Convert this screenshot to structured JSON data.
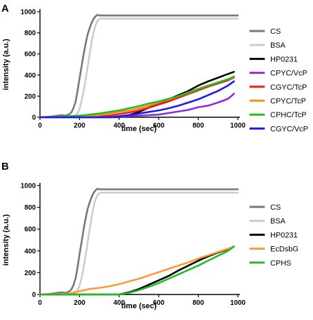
{
  "chart_data": [
    {
      "type": "line",
      "panel_label": "A",
      "xlabel": "time (sec)",
      "ylabel": "intensity (a.u.)",
      "xlim": [
        0,
        1000
      ],
      "ylim": [
        0,
        1000
      ],
      "xticks": [
        0,
        200,
        400,
        600,
        800,
        1000
      ],
      "yticks": [
        0,
        200,
        400,
        600,
        800,
        1000
      ],
      "legend_position": "right",
      "series": [
        {
          "name": "CS",
          "color": "#777777",
          "x": [
            0,
            50,
            90,
            110,
            130,
            150,
            160,
            170,
            180,
            190,
            200,
            210,
            220,
            230,
            240,
            250,
            260,
            270,
            280,
            290,
            300,
            320,
            500,
            700,
            1000
          ],
          "y": [
            0,
            5,
            15,
            20,
            15,
            30,
            50,
            90,
            150,
            250,
            370,
            480,
            590,
            690,
            780,
            840,
            890,
            930,
            955,
            970,
            965,
            965,
            965,
            965,
            965
          ]
        },
        {
          "name": "BSA",
          "color": "#cccccc",
          "x": [
            0,
            150,
            170,
            180,
            190,
            200,
            210,
            220,
            230,
            240,
            250,
            260,
            270,
            280,
            290,
            300,
            310,
            320,
            500,
            700,
            1000
          ],
          "y": [
            0,
            2,
            10,
            20,
            40,
            80,
            150,
            240,
            350,
            470,
            590,
            700,
            800,
            870,
            910,
            930,
            935,
            935,
            935,
            935,
            935
          ]
        },
        {
          "name": "HP0231",
          "color": "#000000",
          "x": [
            0,
            400,
            450,
            500,
            550,
            600,
            650,
            700,
            750,
            800,
            850,
            900,
            950,
            980
          ],
          "y": [
            0,
            0,
            20,
            50,
            90,
            130,
            170,
            210,
            250,
            300,
            340,
            375,
            410,
            430
          ]
        },
        {
          "name": "CPYC/VcP",
          "color": "#8a2be2",
          "x": [
            0,
            350,
            400,
            500,
            550,
            600,
            650,
            700,
            750,
            800,
            850,
            900,
            930,
            950,
            970,
            980
          ],
          "y": [
            0,
            0,
            5,
            15,
            20,
            25,
            40,
            55,
            70,
            95,
            110,
            140,
            160,
            175,
            205,
            225
          ]
        },
        {
          "name": "CGYC/TcP",
          "color": "#ee1c1c",
          "x": [
            0,
            300,
            350,
            400,
            450,
            500,
            550,
            600,
            650,
            700,
            750,
            800,
            850,
            900,
            950,
            980
          ],
          "y": [
            0,
            5,
            15,
            30,
            45,
            65,
            90,
            120,
            150,
            185,
            220,
            255,
            290,
            320,
            350,
            375
          ]
        },
        {
          "name": "CPYC/TcP",
          "color": "#ff8c1a",
          "x": [
            0,
            250,
            300,
            350,
            400,
            450,
            500,
            550,
            600,
            650,
            700,
            750,
            800,
            850,
            900,
            950,
            980
          ],
          "y": [
            0,
            8,
            20,
            35,
            50,
            65,
            85,
            110,
            140,
            170,
            200,
            235,
            270,
            300,
            330,
            360,
            380
          ]
        },
        {
          "name": "CPHC/TcP",
          "color": "#22bb22",
          "x": [
            0,
            100,
            200,
            250,
            300,
            350,
            400,
            450,
            500,
            550,
            600,
            650,
            700,
            750,
            800,
            850,
            900,
            950,
            980
          ],
          "y": [
            0,
            5,
            15,
            25,
            35,
            50,
            65,
            85,
            105,
            130,
            150,
            175,
            200,
            230,
            265,
            300,
            330,
            360,
            385
          ]
        },
        {
          "name": "CGYC/VcP",
          "color": "#1a1aee",
          "x": [
            0,
            350,
            400,
            450,
            500,
            550,
            600,
            650,
            700,
            750,
            800,
            850,
            900,
            950,
            980
          ],
          "y": [
            0,
            0,
            10,
            20,
            35,
            50,
            65,
            85,
            110,
            140,
            170,
            210,
            250,
            300,
            340
          ]
        }
      ]
    },
    {
      "type": "line",
      "panel_label": "B",
      "xlabel": "time (sec)",
      "ylabel": "intensity (a.u.)",
      "xlim": [
        0,
        1000
      ],
      "ylim": [
        0,
        1000
      ],
      "xticks": [
        0,
        200,
        400,
        600,
        800,
        1000
      ],
      "yticks": [
        0,
        200,
        400,
        600,
        800,
        1000
      ],
      "legend_position": "right",
      "series": [
        {
          "name": "CS",
          "color": "#777777",
          "x": [
            0,
            50,
            90,
            110,
            130,
            150,
            160,
            170,
            180,
            190,
            200,
            210,
            220,
            230,
            240,
            250,
            260,
            270,
            280,
            290,
            300,
            320,
            500,
            700,
            1000
          ],
          "y": [
            0,
            5,
            15,
            20,
            15,
            30,
            50,
            90,
            150,
            250,
            370,
            480,
            590,
            690,
            780,
            840,
            890,
            930,
            955,
            970,
            965,
            965,
            965,
            965,
            965
          ]
        },
        {
          "name": "BSA",
          "color": "#cccccc",
          "x": [
            0,
            150,
            170,
            180,
            190,
            200,
            210,
            220,
            230,
            240,
            250,
            260,
            270,
            280,
            290,
            300,
            310,
            320,
            500,
            700,
            1000
          ],
          "y": [
            0,
            2,
            10,
            20,
            40,
            80,
            150,
            240,
            350,
            470,
            590,
            700,
            800,
            870,
            910,
            930,
            935,
            935,
            935,
            935,
            935
          ]
        },
        {
          "name": "HP0231",
          "color": "#000000",
          "x": [
            0,
            400,
            450,
            500,
            550,
            600,
            650,
            700,
            750,
            800,
            850,
            900,
            950,
            980
          ],
          "y": [
            0,
            0,
            20,
            50,
            90,
            130,
            170,
            220,
            265,
            310,
            350,
            385,
            415,
            440
          ]
        },
        {
          "name": "EcDsbG",
          "color": "#ff9933",
          "x": [
            0,
            100,
            150,
            200,
            250,
            300,
            350,
            400,
            450,
            500,
            550,
            600,
            650,
            700,
            750,
            800,
            850,
            900,
            950,
            980
          ],
          "y": [
            0,
            3,
            8,
            30,
            50,
            60,
            75,
            95,
            120,
            145,
            175,
            205,
            235,
            265,
            295,
            330,
            360,
            390,
            420,
            440
          ]
        },
        {
          "name": "CPHS",
          "color": "#22bb22",
          "x": [
            0,
            400,
            450,
            500,
            550,
            600,
            650,
            700,
            750,
            800,
            850,
            900,
            950,
            980
          ],
          "y": [
            0,
            0,
            15,
            40,
            70,
            105,
            145,
            185,
            225,
            265,
            310,
            355,
            400,
            440
          ]
        }
      ]
    }
  ]
}
